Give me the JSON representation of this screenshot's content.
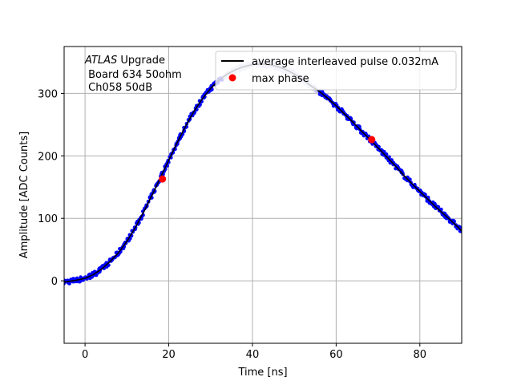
{
  "chart_data": {
    "type": "scatter",
    "xlabel": "Time [ns]",
    "ylabel": "Amplitude [ADC Counts]",
    "xlim": [
      -5,
      90
    ],
    "ylim": [
      -100,
      375
    ],
    "x_ticks": [
      0,
      20,
      40,
      60,
      80
    ],
    "y_ticks": [
      0,
      100,
      200,
      300
    ],
    "grid": true,
    "annotation": {
      "title_italic": "ATLAS",
      "title_rest": " Upgrade",
      "line2": " Board 634 50ohm",
      "line3": " Ch058 50dB"
    },
    "legend": {
      "placement": "top-right",
      "entries": [
        {
          "label": "average interleaved pulse 0.032mA",
          "marker": "line",
          "color": "#000000"
        },
        {
          "label": "max phase",
          "marker": "dot",
          "color": "#ff0000"
        }
      ]
    },
    "series": [
      {
        "name": "average interleaved pulse 0.032mA",
        "kind": "line",
        "color": "#000000",
        "x": [
          -5,
          -2,
          0,
          2,
          4,
          6,
          8,
          10,
          12,
          14,
          16,
          18,
          20,
          22,
          24,
          26,
          28,
          30,
          32,
          34,
          36,
          38,
          40,
          42,
          44,
          46,
          48,
          50,
          52,
          54,
          56,
          58,
          60,
          62,
          64,
          66,
          68,
          70,
          72,
          74,
          76,
          78,
          80,
          82,
          84,
          86,
          88,
          90
        ],
        "y": [
          -2,
          1,
          4,
          10,
          19,
          31,
          45,
          63,
          85,
          110,
          137,
          165,
          193,
          221,
          247,
          271,
          291,
          308,
          321,
          331,
          338,
          343,
          346,
          347,
          346,
          343,
          338,
          331,
          322,
          312,
          303,
          292,
          280,
          267,
          254,
          240,
          227,
          213,
          199,
          185,
          170,
          156,
          143,
          130,
          117,
          105,
          93,
          80
        ]
      },
      {
        "name": "max phase",
        "kind": "points",
        "color": "#ff0000",
        "x": [
          18.5,
          68.5
        ],
        "y": [
          163,
          226
        ]
      }
    ],
    "scatter": {
      "dark_color": "#0000ff",
      "light_color": "#c8c8f5",
      "light_range": [
        33,
        56
      ],
      "jitter_counts": 4,
      "step_ns": 0.3
    }
  }
}
